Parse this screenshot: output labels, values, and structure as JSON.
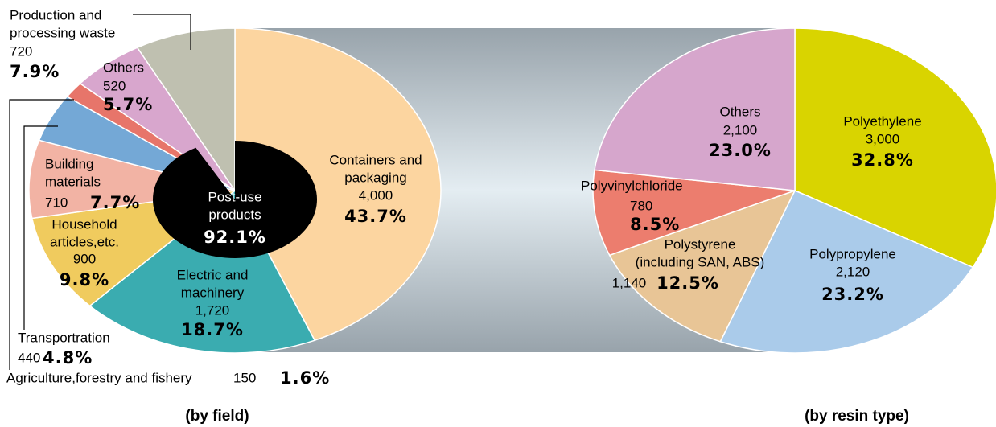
{
  "chart_data": [
    {
      "type": "pie",
      "subtitle": "(by field)",
      "labels": [
        [
          "Containers and",
          "packaging"
        ],
        [
          "Electric and",
          "machinery"
        ],
        [
          "Household",
          "articles,etc."
        ],
        [
          "Building",
          "materials"
        ],
        [
          "Transportration"
        ],
        [
          "Agriculture,forestry and fishery"
        ],
        [
          "Others"
        ],
        [
          "Production and",
          "processing waste"
        ]
      ],
      "values": [
        4000,
        1720,
        900,
        710,
        440,
        150,
        520,
        720
      ],
      "value_labels": [
        "4,000",
        "1,720",
        "900",
        "710",
        "440",
        "150",
        "520",
        "720"
      ],
      "shares": [
        43.7,
        18.7,
        9.8,
        7.7,
        4.8,
        1.6,
        5.7,
        7.9
      ],
      "share_labels": [
        "43.7%",
        "18.7%",
        "9.8%",
        "7.7%",
        "4.8%",
        "1.6%",
        "5.7%",
        "7.9%"
      ],
      "colors": [
        "#fcd5a0",
        "#3aacb0",
        "#f0cb5e",
        "#f2b3a4",
        "#74a8d6",
        "#e7756a",
        "#d8a6cd",
        "#bfc0b0"
      ],
      "center_label": [
        "Post-use",
        "products"
      ],
      "center_value": 92.1,
      "center_value_label": "92.1%",
      "center_color": "#000000"
    },
    {
      "type": "pie",
      "subtitle": "(by resin type)",
      "labels": [
        [
          "Polyethylene"
        ],
        [
          "Polypropylene"
        ],
        [
          "Polystyrene",
          "(including SAN, ABS)"
        ],
        [
          "Polyvinylchloride"
        ],
        [
          "Others"
        ]
      ],
      "values": [
        3000,
        2120,
        1140,
        780,
        2100
      ],
      "value_labels": [
        "3,000",
        "2,120",
        "1,140",
        "780",
        "2,100"
      ],
      "shares": [
        32.8,
        23.2,
        12.5,
        8.5,
        23.0
      ],
      "share_labels": [
        "32.8%",
        "23.2%",
        "12.5%",
        "8.5%",
        "23.0%"
      ],
      "colors": [
        "#d9d400",
        "#aacbea",
        "#e8c596",
        "#ec7d6e",
        "#d6a6cc"
      ]
    }
  ]
}
